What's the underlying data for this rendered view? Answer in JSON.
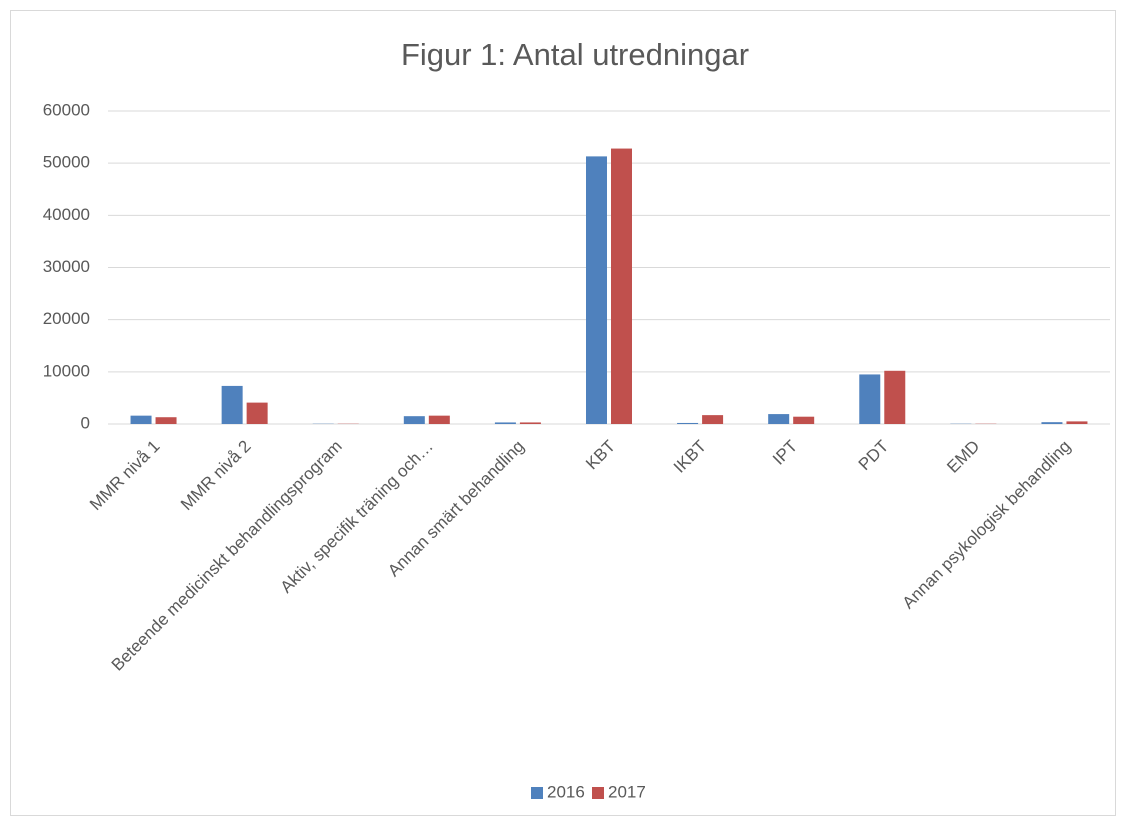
{
  "chart_data": {
    "type": "bar",
    "title": "Figur 1: Antal utredningar",
    "categories": [
      "MMR nivå 1",
      "MMR nivå 2",
      "Beteende medicinskt behandlingsprogram",
      "Aktiv, specifik träning och…",
      "Annan smärt behandling",
      "KBT",
      "IKBT",
      "IPT",
      "PDT",
      "EMD",
      "Annan psykologisk behandling"
    ],
    "series": [
      {
        "name": "2016",
        "color": "#4f81bd",
        "values": [
          1600,
          7300,
          50,
          1500,
          300,
          51300,
          200,
          1900,
          9500,
          50,
          350
        ]
      },
      {
        "name": "2017",
        "color": "#c0504d",
        "values": [
          1300,
          4100,
          50,
          1600,
          300,
          52800,
          1700,
          1400,
          10200,
          50,
          500
        ]
      }
    ],
    "ylim": [
      0,
      60000
    ],
    "yticks": [
      0,
      10000,
      20000,
      30000,
      40000,
      50000,
      60000
    ],
    "grid": true,
    "legend": "bottom"
  }
}
